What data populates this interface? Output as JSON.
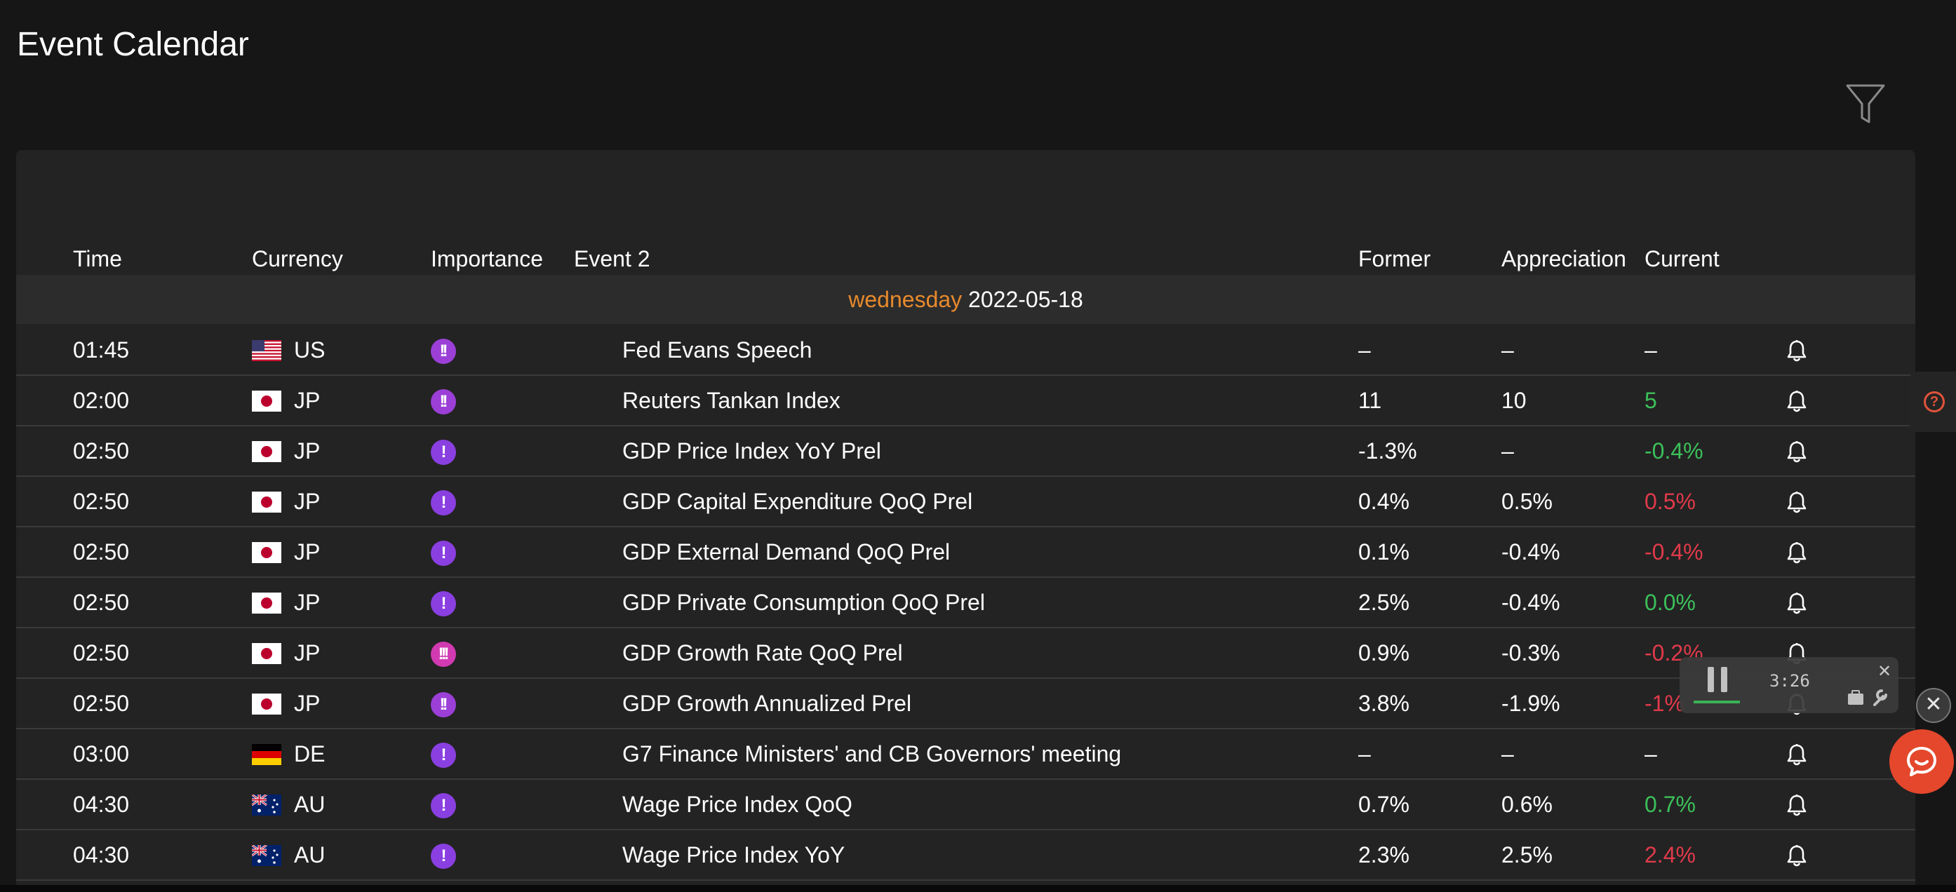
{
  "page": {
    "title": "Event Calendar"
  },
  "table": {
    "headers": {
      "time": "Time",
      "currency": "Currency",
      "importance": "Importance",
      "event": "Event 2",
      "former": "Former",
      "appreciation": "Appreciation",
      "current": "Current"
    },
    "date_group": {
      "weekday": "wednesday",
      "date": "2022-05-18"
    },
    "rows": [
      {
        "time": "01:45",
        "flag": "us-flag-icon",
        "currency": "US",
        "importance": "!!",
        "importance_level": 2,
        "event": "Fed Evans Speech",
        "former": "–",
        "appreciation": "–",
        "current": "–",
        "current_status": "neutral"
      },
      {
        "time": "02:00",
        "flag": "jp-flag-icon",
        "currency": "JP",
        "importance": "!!",
        "importance_level": 2,
        "event": "Reuters Tankan Index",
        "former": "11",
        "appreciation": "10",
        "current": "5",
        "current_status": "positive"
      },
      {
        "time": "02:50",
        "flag": "jp-flag-icon",
        "currency": "JP",
        "importance": "!",
        "importance_level": 1,
        "event": "GDP Price Index YoY Prel",
        "former": "-1.3%",
        "appreciation": "–",
        "current": "-0.4%",
        "current_status": "positive"
      },
      {
        "time": "02:50",
        "flag": "jp-flag-icon",
        "currency": "JP",
        "importance": "!",
        "importance_level": 1,
        "event": "GDP Capital Expenditure QoQ Prel",
        "former": "0.4%",
        "appreciation": "0.5%",
        "current": "0.5%",
        "current_status": "negative"
      },
      {
        "time": "02:50",
        "flag": "jp-flag-icon",
        "currency": "JP",
        "importance": "!",
        "importance_level": 1,
        "event": "GDP External Demand QoQ Prel",
        "former": "0.1%",
        "appreciation": "-0.4%",
        "current": "-0.4%",
        "current_status": "negative"
      },
      {
        "time": "02:50",
        "flag": "jp-flag-icon",
        "currency": "JP",
        "importance": "!",
        "importance_level": 1,
        "event": "GDP Private Consumption QoQ Prel",
        "former": "2.5%",
        "appreciation": "-0.4%",
        "current": "0.0%",
        "current_status": "positive"
      },
      {
        "time": "02:50",
        "flag": "jp-flag-icon",
        "currency": "JP",
        "importance": "!!!",
        "importance_level": 3,
        "event": "GDP Growth Rate QoQ Prel",
        "former": "0.9%",
        "appreciation": "-0.3%",
        "current": "-0.2%",
        "current_status": "negative"
      },
      {
        "time": "02:50",
        "flag": "jp-flag-icon",
        "currency": "JP",
        "importance": "!!",
        "importance_level": 2,
        "event": "GDP Growth Annualized Prel",
        "former": "3.8%",
        "appreciation": "-1.9%",
        "current": "-1%",
        "current_status": "negative"
      },
      {
        "time": "03:00",
        "flag": "de-flag-icon",
        "currency": "DE",
        "importance": "!",
        "importance_level": 1,
        "event": "G7 Finance Ministers' and CB Governors' meeting",
        "former": "–",
        "appreciation": "–",
        "current": "–",
        "current_status": "neutral"
      },
      {
        "time": "04:30",
        "flag": "au-flag-icon",
        "currency": "AU",
        "importance": "!",
        "importance_level": 1,
        "event": "Wage Price Index QoQ",
        "former": "0.7%",
        "appreciation": "0.6%",
        "current": "0.7%",
        "current_status": "positive"
      },
      {
        "time": "04:30",
        "flag": "au-flag-icon",
        "currency": "AU",
        "importance": "!",
        "importance_level": 1,
        "event": "Wage Price Index YoY",
        "former": "2.3%",
        "appreciation": "2.5%",
        "current": "2.4%",
        "current_status": "negative"
      }
    ]
  },
  "player": {
    "time": "3:26"
  },
  "colors": {
    "weekday": "#e88a2c",
    "positive": "#3cc05a",
    "negative": "#e03a4a",
    "importance_low": "#8a3fe0",
    "importance_mid": "#9b3fd6",
    "importance_high": "#d13ab0",
    "chat_button": "#e4472c"
  },
  "icons": {
    "filter": "filter-icon",
    "bell": "bell-icon",
    "help": "help-icon",
    "chat": "chat-icon"
  }
}
